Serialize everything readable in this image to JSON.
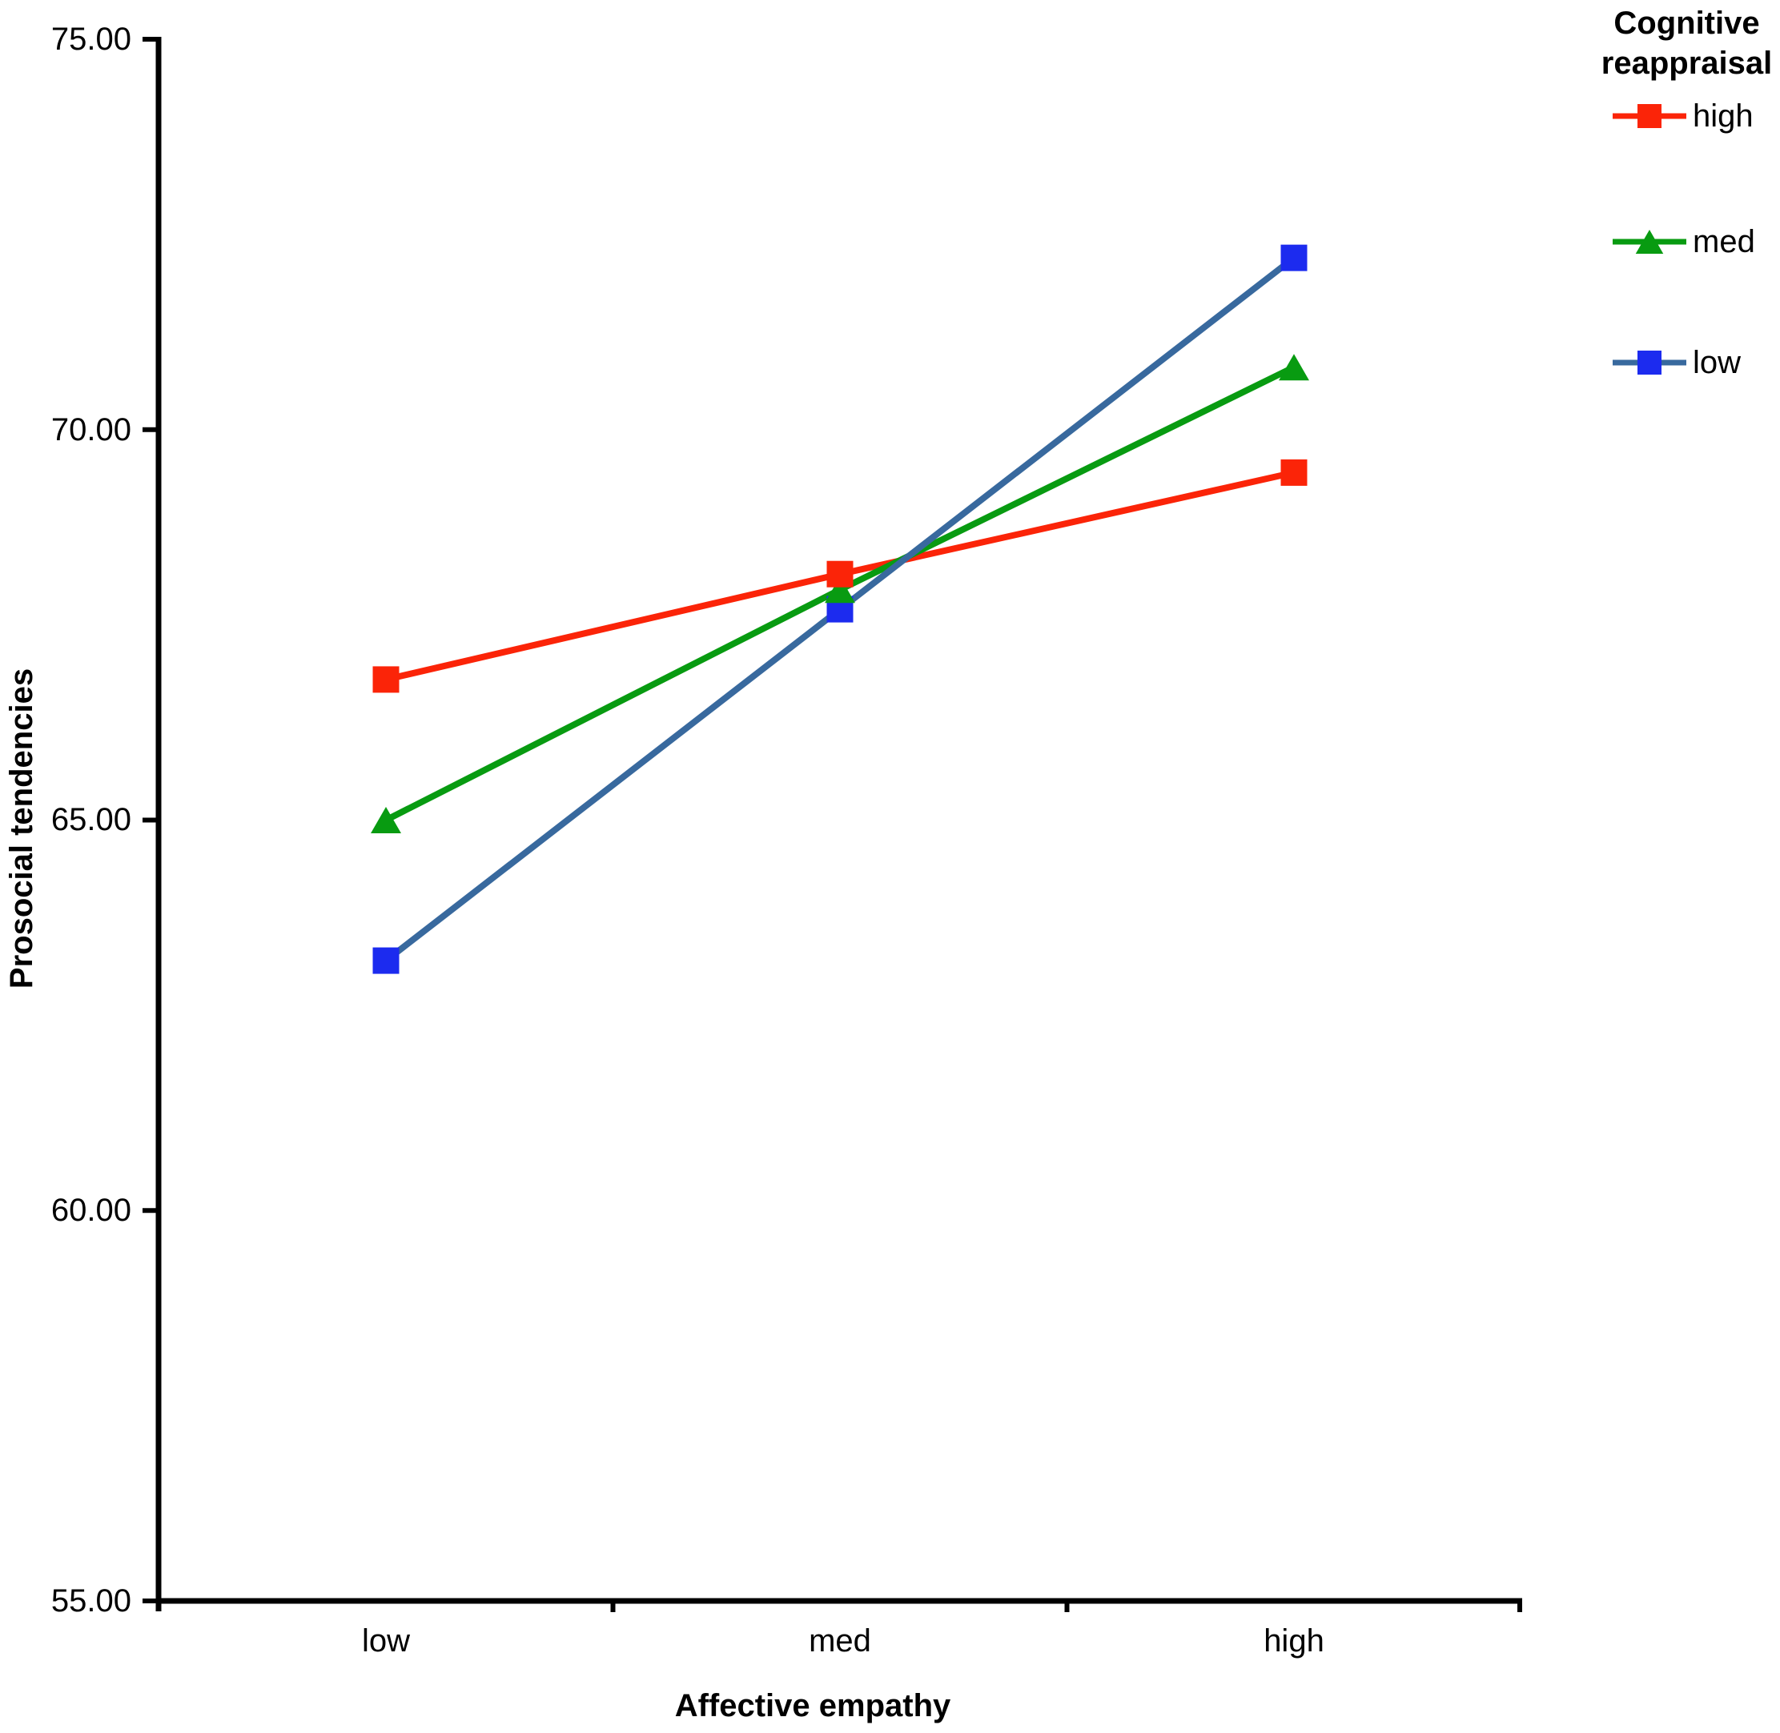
{
  "chart_data": {
    "type": "line",
    "title": "",
    "xlabel": "Affective empathy",
    "ylabel": "Prosocial tendencies",
    "categories": [
      "low",
      "med",
      "high"
    ],
    "y_tick_labels": [
      "75.00",
      "70.00",
      "65.00",
      "60.00",
      "55.00"
    ],
    "y_tick_values": [
      75,
      70,
      65,
      60,
      55
    ],
    "ylim": [
      55,
      75
    ],
    "grid": "off",
    "legend": {
      "title": "Cognitive reappraisal",
      "position": "top-right"
    },
    "series": [
      {
        "name": "high",
        "marker": "square",
        "line_color": "#fb2408",
        "marker_color": "#fb2408",
        "values": [
          66.8,
          68.15,
          69.45
        ]
      },
      {
        "name": "med",
        "marker": "triangle",
        "line_color": "#089b11",
        "marker_color": "#089b11",
        "values": [
          65.0,
          67.95,
          70.8
        ]
      },
      {
        "name": "low",
        "marker": "square",
        "line_color": "#38699e",
        "marker_color": "#1c2bef",
        "values": [
          63.2,
          67.7,
          72.2
        ]
      }
    ]
  }
}
